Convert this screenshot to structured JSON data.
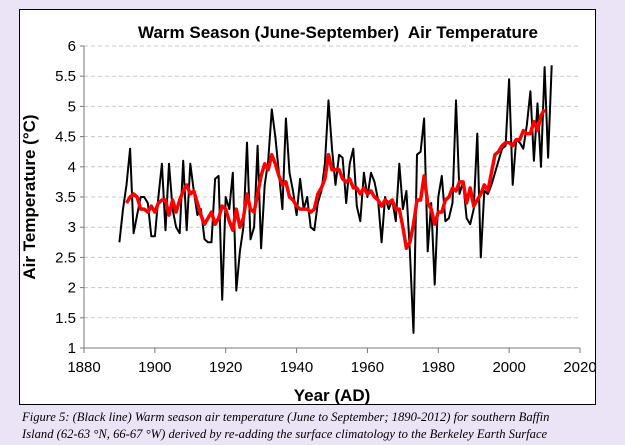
{
  "chart_data": {
    "type": "line",
    "title": "Warm Season (June-September)  Air Temperature",
    "xlabel": "Year (AD)",
    "ylabel": "Air Temperature (°C)",
    "xlim": [
      1880,
      2020
    ],
    "ylim": [
      1,
      6
    ],
    "xticks": [
      1880,
      1900,
      1920,
      1940,
      1960,
      1980,
      2000,
      2020
    ],
    "yticks": [
      1,
      1.5,
      2,
      2.5,
      3,
      3.5,
      4,
      4.5,
      5,
      5.5,
      6
    ],
    "ytick_labels": [
      "1",
      "1.5",
      "2",
      "2.5",
      "3",
      "3.5",
      "4",
      "4.5",
      "5",
      "5.5",
      "6"
    ],
    "grid": "horizontal dashed",
    "legend": "none",
    "series": [
      {
        "color": "#000000",
        "x_start": 1890,
        "values": [
          2.75,
          3.3,
          3.7,
          4.3,
          2.9,
          3.2,
          3.5,
          3.5,
          3.4,
          2.85,
          2.85,
          3.5,
          4.05,
          2.95,
          4.05,
          3.3,
          3.0,
          2.9,
          4.1,
          2.95,
          4.05,
          3.6,
          3.2,
          3.3,
          2.8,
          2.75,
          2.75,
          3.8,
          3.85,
          1.8,
          3.5,
          3.3,
          3.9,
          1.95,
          2.6,
          3.0,
          4.4,
          2.8,
          3.0,
          4.35,
          2.65,
          3.7,
          4.1,
          4.95,
          4.5,
          3.9,
          3.3,
          4.8,
          3.9,
          3.6,
          3.2,
          3.8,
          3.3,
          3.5,
          3.0,
          2.95,
          3.4,
          3.6,
          4.05,
          5.1,
          4.3,
          3.7,
          4.2,
          4.15,
          3.4,
          4.05,
          4.3,
          3.35,
          3.1,
          3.9,
          3.5,
          3.9,
          3.75,
          3.45,
          2.75,
          3.5,
          3.3,
          3.45,
          3.1,
          4.05,
          3.3,
          3.6,
          2.6,
          1.25,
          4.2,
          4.25,
          4.8,
          2.6,
          3.4,
          2.05,
          3.5,
          3.85,
          3.1,
          3.15,
          3.4,
          5.1,
          3.55,
          3.75,
          3.15,
          3.05,
          3.3,
          4.55,
          2.5,
          3.6,
          3.55,
          3.7,
          3.9,
          4.1,
          4.3,
          4.35,
          5.45,
          3.7,
          4.45,
          4.4,
          4.3,
          4.7,
          5.25,
          4.1,
          5.05,
          4.0,
          5.65,
          4.15,
          5.68
        ]
      },
      {
        "color": "#ff0000",
        "x_start": 1892,
        "values": [
          3.4,
          3.5,
          3.55,
          3.5,
          3.3,
          3.3,
          3.25,
          3.35,
          3.25,
          3.4,
          3.45,
          3.45,
          3.2,
          3.45,
          3.25,
          3.45,
          3.6,
          3.7,
          3.55,
          3.6,
          3.4,
          3.2,
          3.05,
          3.15,
          3.25,
          3.05,
          3.15,
          3.35,
          3.3,
          3.1,
          2.95,
          3.3,
          3.0,
          3.15,
          3.55,
          3.3,
          3.25,
          3.55,
          3.85,
          4.05,
          3.95,
          4.2,
          4.05,
          3.85,
          3.7,
          3.75,
          3.5,
          3.45,
          3.35,
          3.3,
          3.3,
          3.3,
          3.25,
          3.3,
          3.55,
          3.65,
          3.8,
          4.2,
          3.95,
          3.95,
          3.95,
          3.8,
          3.75,
          3.8,
          3.65,
          3.65,
          3.55,
          3.65,
          3.55,
          3.6,
          3.5,
          3.45,
          3.35,
          3.45,
          3.4,
          3.45,
          3.3,
          3.3,
          3.0,
          2.65,
          2.75,
          3.05,
          3.45,
          3.45,
          3.85,
          3.4,
          3.3,
          3.05,
          3.25,
          3.25,
          3.45,
          3.5,
          3.65,
          3.6,
          3.75,
          3.75,
          3.4,
          3.65,
          3.35,
          3.45,
          3.55,
          3.7,
          3.6,
          3.9,
          4.2,
          4.25,
          4.35,
          4.4,
          4.4,
          4.35,
          4.45,
          4.45,
          4.6,
          4.55,
          4.55,
          4.75,
          4.6,
          4.85,
          4.95
        ]
      }
    ]
  },
  "caption": {
    "line1": "Figure 5: (Black line) Warm season air temperature (June to September; 1890-2012) for southern Baffin",
    "line2": "Island (62-63 °N, 66-67 °W) derived by re-adding the surface climatology to the Berkeley Earth Surface"
  }
}
